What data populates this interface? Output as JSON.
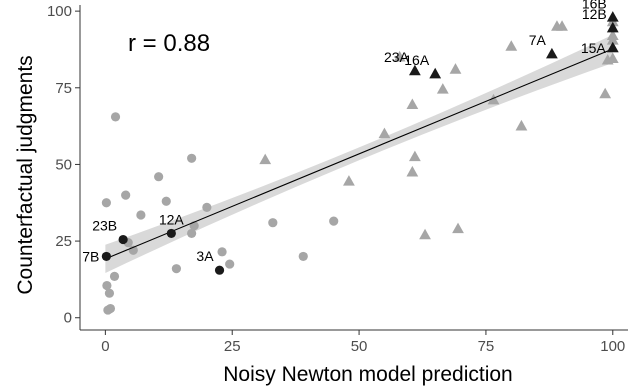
{
  "chart_data": {
    "type": "scatter",
    "xlabel": "Noisy Newton model prediction",
    "ylabel": "Counterfactual judgments",
    "xlim": [
      -5,
      103
    ],
    "ylim": [
      -4,
      102
    ],
    "xticks": [
      "0",
      "25",
      "50",
      "75",
      "100"
    ],
    "yticks": [
      "0",
      "25",
      "50",
      "75",
      "100"
    ],
    "annotation": "r = 0.88",
    "grid": false,
    "colors": {
      "background_points": "#a6a6a6",
      "highlight_points": "#1a1a1a",
      "regression_line": "#000000",
      "confidence_band": "#d9d9d9",
      "axis": "#333333"
    },
    "regression": {
      "intercept": 19.2,
      "slope": 0.685,
      "band_halfwidth_ends": 4.6,
      "band_halfwidth_center": 2.1
    },
    "series": [
      {
        "marker": "circle",
        "points": [
          {
            "x": 0.3,
            "y": 10.5
          },
          {
            "x": 0.5,
            "y": 2.5
          },
          {
            "x": 1,
            "y": 3
          },
          {
            "x": 0.8,
            "y": 8
          },
          {
            "x": 0.2,
            "y": 37.5
          },
          {
            "x": 1.8,
            "y": 13.5
          },
          {
            "x": 2,
            "y": 65.5
          },
          {
            "x": 4,
            "y": 40
          },
          {
            "x": 4.5,
            "y": 24.5
          },
          {
            "x": 5.5,
            "y": 22
          },
          {
            "x": 7,
            "y": 33.5
          },
          {
            "x": 10.5,
            "y": 46
          },
          {
            "x": 12,
            "y": 38
          },
          {
            "x": 14,
            "y": 16
          },
          {
            "x": 17,
            "y": 27.5
          },
          {
            "x": 17.5,
            "y": 30
          },
          {
            "x": 17,
            "y": 52
          },
          {
            "x": 20,
            "y": 36
          },
          {
            "x": 23,
            "y": 21.5
          },
          {
            "x": 24.5,
            "y": 17.5
          },
          {
            "x": 33,
            "y": 31
          },
          {
            "x": 39,
            "y": 20
          },
          {
            "x": 45,
            "y": 31.5
          }
        ]
      },
      {
        "marker": "triangle",
        "points": [
          {
            "x": 31.5,
            "y": 51.5
          },
          {
            "x": 48,
            "y": 44.5
          },
          {
            "x": 55,
            "y": 60
          },
          {
            "x": 60.5,
            "y": 47.5
          },
          {
            "x": 61,
            "y": 52.5
          },
          {
            "x": 60.5,
            "y": 69.5
          },
          {
            "x": 63,
            "y": 27
          },
          {
            "x": 66.5,
            "y": 74.5
          },
          {
            "x": 69,
            "y": 81
          },
          {
            "x": 69.5,
            "y": 29
          },
          {
            "x": 76.5,
            "y": 71
          },
          {
            "x": 80,
            "y": 88.5
          },
          {
            "x": 82,
            "y": 62.5
          },
          {
            "x": 89,
            "y": 95
          },
          {
            "x": 90,
            "y": 95
          },
          {
            "x": 98.5,
            "y": 73
          },
          {
            "x": 99,
            "y": 84
          },
          {
            "x": 100,
            "y": 84.5
          },
          {
            "x": 100,
            "y": 88
          },
          {
            "x": 100,
            "y": 90.5
          },
          {
            "x": 100,
            "y": 92
          },
          {
            "x": 100,
            "y": 96.5
          },
          {
            "x": 58,
            "y": 85
          }
        ]
      }
    ],
    "labeled_points": [
      {
        "label": "7B",
        "x": 0.2,
        "y": 20,
        "marker": "circle",
        "label_pos": "left"
      },
      {
        "label": "23B",
        "x": 3.5,
        "y": 25.5,
        "marker": "circle",
        "label_pos": "above-left"
      },
      {
        "label": "12A",
        "x": 13,
        "y": 27.5,
        "marker": "circle",
        "label_pos": "above"
      },
      {
        "label": "3A",
        "x": 22.5,
        "y": 15.5,
        "marker": "circle",
        "label_pos": "above-left"
      },
      {
        "label": "23A",
        "x": 61,
        "y": 80.5,
        "marker": "triangle",
        "label_pos": "above-left"
      },
      {
        "label": "16A",
        "x": 65,
        "y": 79.5,
        "marker": "triangle",
        "label_pos": "above-left"
      },
      {
        "label": "7A",
        "x": 88,
        "y": 86,
        "marker": "triangle",
        "label_pos": "above-left"
      },
      {
        "label": "15A",
        "x": 100,
        "y": 88,
        "marker": "triangle",
        "label_pos": "left"
      },
      {
        "label": "12B",
        "x": 100,
        "y": 94.5,
        "marker": "triangle",
        "label_pos": "above-left"
      },
      {
        "label": "16B",
        "x": 100,
        "y": 98,
        "marker": "triangle",
        "label_pos": "above-left"
      }
    ]
  }
}
